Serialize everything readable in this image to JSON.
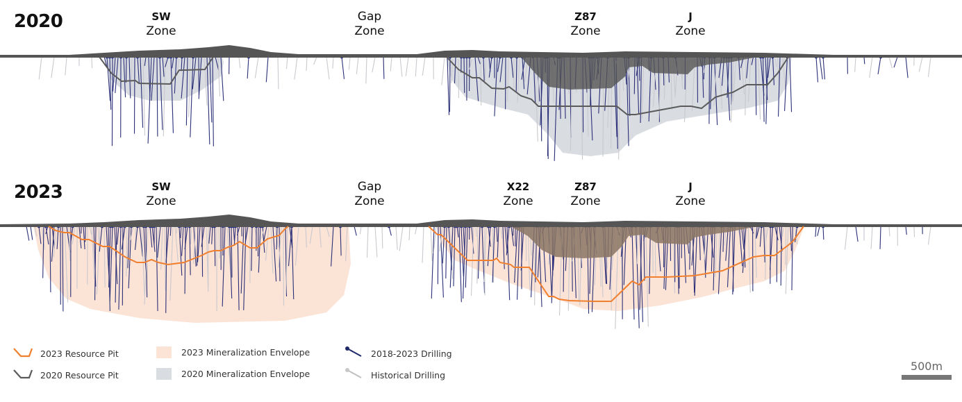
{
  "panels": [
    {
      "year": "2020",
      "zones": [
        {
          "name": "SW",
          "suffix": "Zone"
        },
        {
          "name": "Gap",
          "suffix": "Zone"
        },
        {
          "name": "Z87",
          "suffix": "Zone"
        },
        {
          "name": "J",
          "suffix": "Zone"
        }
      ]
    },
    {
      "year": "2023",
      "zones": [
        {
          "name": "SW",
          "suffix": "Zone"
        },
        {
          "name": "Gap",
          "suffix": "Zone"
        },
        {
          "name": "X22",
          "suffix": "Zone"
        },
        {
          "name": "Z87",
          "suffix": "Zone"
        },
        {
          "name": "J",
          "suffix": "Zone"
        }
      ]
    }
  ],
  "legend": {
    "pit_2023": "2023 Resource Pit",
    "pit_2020": "2020 Resource Pit",
    "env_2023": "2023 Mineralization Envelope",
    "env_2020": "2020 Mineralization Envelope",
    "drill_recent": "2018-2023 Drilling",
    "drill_hist": "Historical Drilling"
  },
  "scale_bar": {
    "label": "500m"
  },
  "colors": {
    "pit_2023": "#f07f2e",
    "pit_2020": "#5a5a5a",
    "env_2023": "#fbe3d6",
    "env_2020": "#d9dce1",
    "drill_recent": "#1f2a6b",
    "drill_hist": "#c8c8c8",
    "topo": "#555555",
    "existing_pit_2023": "#8a7564"
  }
}
